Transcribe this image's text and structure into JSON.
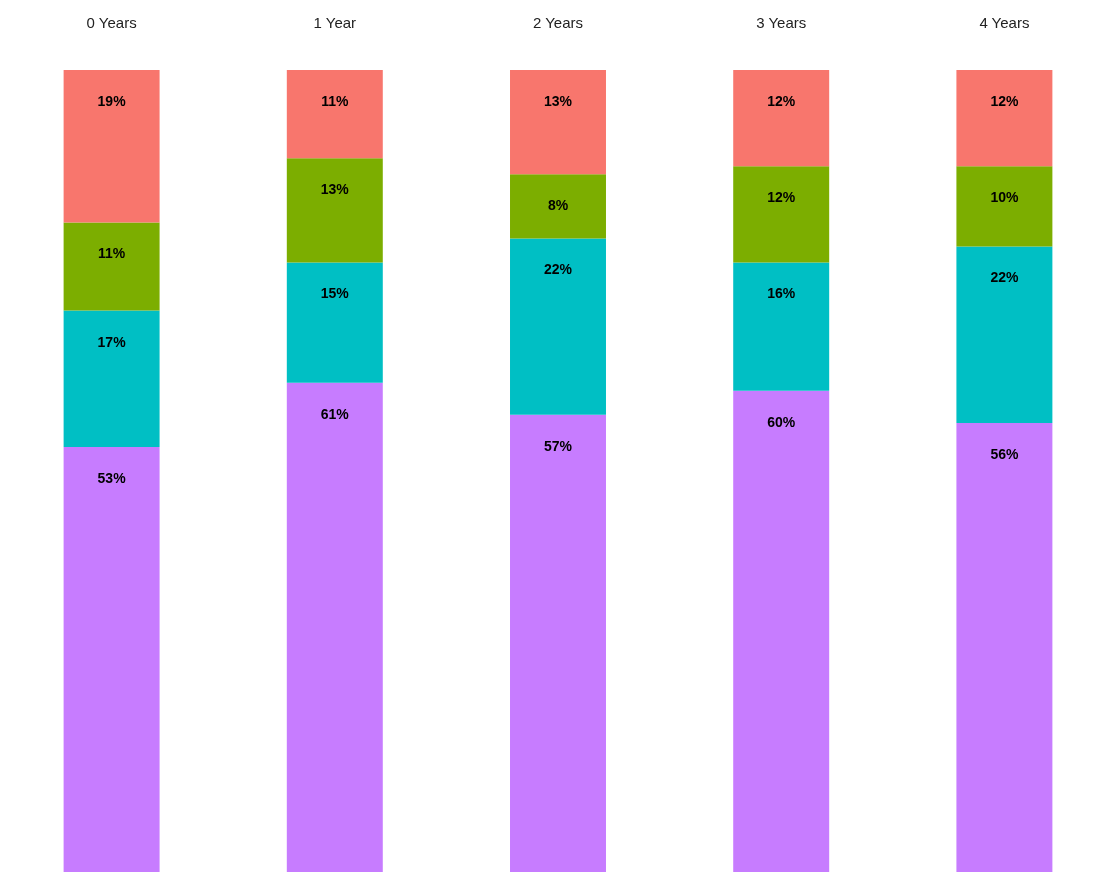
{
  "chart_data": {
    "type": "bar",
    "stacked": true,
    "categories": [
      "0 Years",
      "1 Year",
      "2 Years",
      "3 Years",
      "4 Years"
    ],
    "series": [
      {
        "color": "#c77cff",
        "values": [
          53,
          61,
          57,
          60,
          56
        ],
        "value_labels": [
          "53%",
          "61%",
          "57%",
          "60%",
          "56%"
        ]
      },
      {
        "color": "#00bfc4",
        "values": [
          17,
          15,
          22,
          16,
          22
        ],
        "value_labels": [
          "17%",
          "15%",
          "22%",
          "16%",
          "22%"
        ]
      },
      {
        "color": "#7cae00",
        "values": [
          11,
          13,
          8,
          12,
          10
        ],
        "value_labels": [
          "11%",
          "13%",
          "8%",
          "12%",
          "10%"
        ]
      },
      {
        "color": "#f8766d",
        "values": [
          19,
          11,
          13,
          12,
          12
        ],
        "value_labels": [
          "19%",
          "11%",
          "13%",
          "12%",
          "12%"
        ]
      }
    ],
    "tick_labels": "x"
  }
}
